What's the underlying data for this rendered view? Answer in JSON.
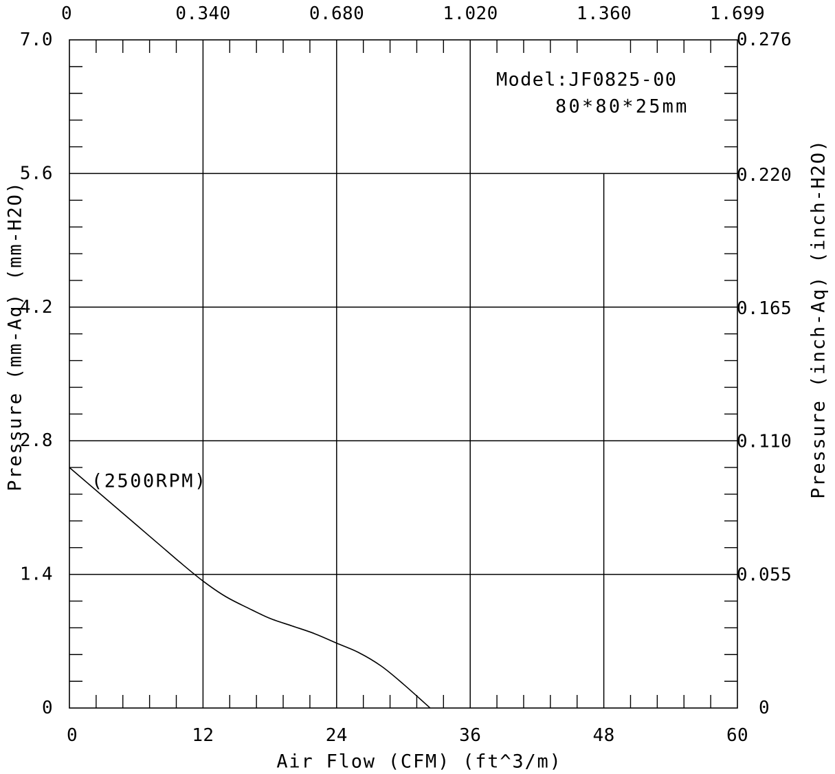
{
  "chart_data": {
    "type": "line",
    "xlabel": "Air Flow (CFM) (ft^3/m)",
    "ylabel": "Pressure (mm-Aq) (mm-H2O)",
    "y2label": "Pressure (inch-Aq) (inch-H2O)",
    "xlim": [
      0,
      60
    ],
    "ylim": [
      0,
      7.0
    ],
    "x2lim": [
      0,
      1.699
    ],
    "y2lim": [
      0,
      0.276
    ],
    "x_ticks": [
      "0",
      "12",
      "24",
      "36",
      "48",
      "60"
    ],
    "x2_ticks": [
      "0",
      "0.340",
      "0.680",
      "1.020",
      "1.360",
      "1.699"
    ],
    "y_ticks": [
      "0",
      "1.4",
      "2.8",
      "4.2",
      "5.6",
      "7.0"
    ],
    "y2_ticks": [
      "0",
      "0.055",
      "0.110",
      "0.165",
      "0.220",
      "0.276"
    ],
    "grid": true,
    "annotations": {
      "model": "Model:JF0825-00",
      "size": "80*80*25mm"
    },
    "series": [
      {
        "name": "(2500RPM)",
        "x": [
          0,
          2,
          4,
          6,
          8,
          10,
          12,
          14,
          16,
          18,
          20,
          22,
          24,
          26,
          28,
          30,
          32.4
        ],
        "y": [
          2.52,
          2.32,
          2.12,
          1.92,
          1.72,
          1.52,
          1.33,
          1.17,
          1.05,
          0.94,
          0.86,
          0.78,
          0.68,
          0.58,
          0.44,
          0.25,
          0
        ]
      }
    ]
  },
  "colors": {
    "ink": "#000000",
    "background": "#ffffff"
  }
}
